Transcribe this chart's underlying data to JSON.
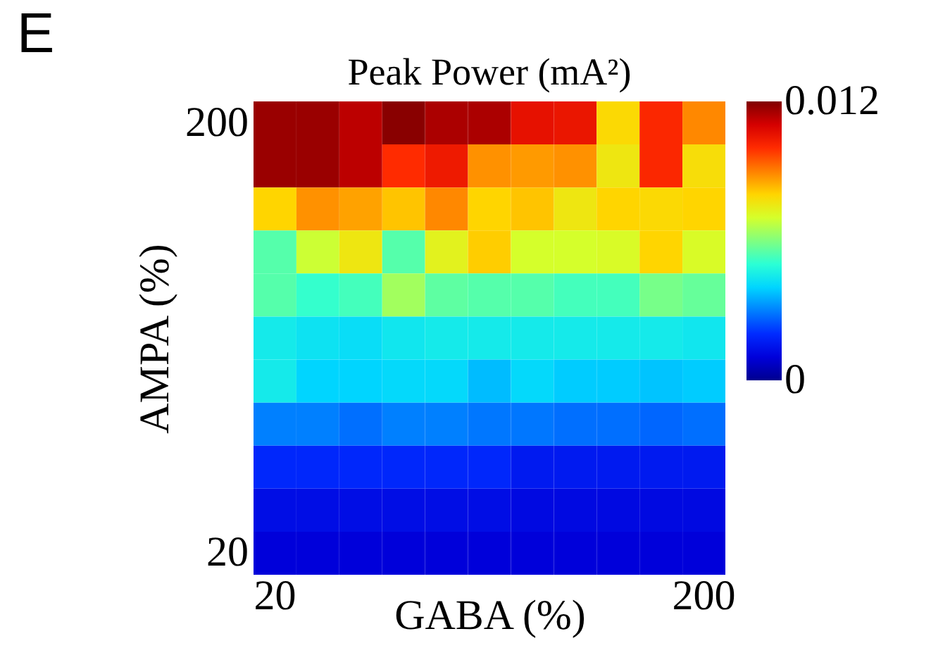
{
  "chart_data": {
    "type": "heatmap",
    "title": "Peak Power (mA²)",
    "xlabel": "GABA (%)",
    "ylabel": "AMPA (%)",
    "annotations": [
      "E"
    ],
    "categories": [
      "20",
      null,
      null,
      null,
      null,
      null,
      null,
      null,
      null,
      null,
      "200"
    ],
    "y_categories": [
      "200",
      null,
      null,
      null,
      null,
      null,
      null,
      null,
      null,
      null,
      "20"
    ],
    "clim": [
      0,
      0.012
    ],
    "cticks": [
      0,
      0.012
    ],
    "cells": [
      [
        0.0117,
        0.0117,
        0.0113,
        0.0119,
        0.0115,
        0.0115,
        0.0106,
        0.0105,
        0.0079,
        0.0101,
        0.0089
      ],
      [
        0.0117,
        0.0117,
        0.0113,
        0.01,
        0.0104,
        0.0088,
        0.0087,
        0.0088,
        0.0076,
        0.0101,
        0.0078
      ],
      [
        0.008,
        0.0088,
        0.0086,
        0.0082,
        0.0089,
        0.008,
        0.0082,
        0.0076,
        0.008,
        0.0079,
        0.008
      ],
      [
        0.0055,
        0.0069,
        0.0076,
        0.0055,
        0.0073,
        0.0081,
        0.007,
        0.007,
        0.0071,
        0.008,
        0.0071
      ],
      [
        0.0055,
        0.0051,
        0.0053,
        0.0064,
        0.0056,
        0.0055,
        0.0055,
        0.0053,
        0.0053,
        0.0059,
        0.0057
      ],
      [
        0.0045,
        0.0043,
        0.0042,
        0.0044,
        0.0045,
        0.0045,
        0.0045,
        0.0045,
        0.0045,
        0.0045,
        0.0044
      ],
      [
        0.0045,
        0.004,
        0.004,
        0.0041,
        0.0041,
        0.0037,
        0.0041,
        0.0039,
        0.0039,
        0.0038,
        0.0039
      ],
      [
        0.003,
        0.003,
        0.0028,
        0.003,
        0.003,
        0.0029,
        0.0029,
        0.0028,
        0.0028,
        0.0027,
        0.0028
      ],
      [
        0.0019,
        0.0019,
        0.0019,
        0.0019,
        0.0019,
        0.0019,
        0.0016,
        0.0016,
        0.0016,
        0.0016,
        0.0016
      ],
      [
        0.0013,
        0.0013,
        0.0013,
        0.0013,
        0.0013,
        0.0013,
        0.0012,
        0.0012,
        0.0012,
        0.0012,
        0.0012
      ],
      [
        0.001,
        0.001,
        0.001,
        0.001,
        0.001,
        0.001,
        0.001,
        0.001,
        0.001,
        0.001,
        0.001
      ]
    ]
  }
}
